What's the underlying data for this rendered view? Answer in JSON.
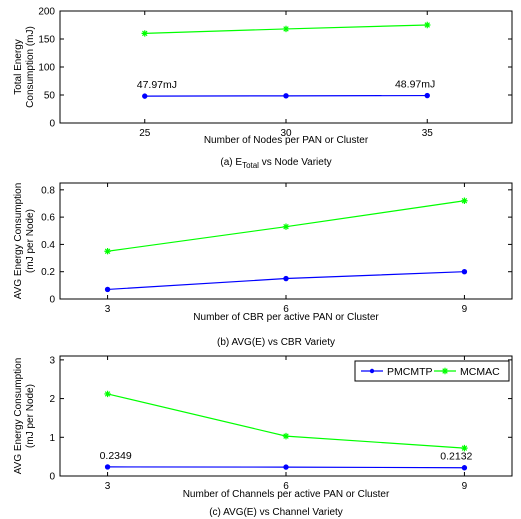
{
  "colors": {
    "PMCMTP": "#0000ff",
    "MCMAC": "#00ff00",
    "axes": "#000000"
  },
  "chart_data": [
    {
      "type": "line",
      "caption": "(a) E",
      "caption_sub": "Total",
      "caption_rest": " vs Node Variety",
      "xlabel": "Number of Nodes per  PAN or Cluster",
      "ylabel": [
        "Total Energy",
        "Consumption (mJ)"
      ],
      "x": [
        25,
        30,
        35
      ],
      "xlim": [
        22,
        38
      ],
      "ylim": [
        0,
        200
      ],
      "xticks": [
        "25",
        "30",
        "35"
      ],
      "yticks": [
        "0",
        "50",
        "100",
        "150",
        "200"
      ],
      "series": [
        {
          "key": "PMCMTP",
          "marker": "circle",
          "values": [
            47.97,
            48.5,
            48.97
          ]
        },
        {
          "key": "MCMAC",
          "marker": "star",
          "values": [
            160,
            168,
            175
          ]
        }
      ],
      "annotations": [
        {
          "text": "47.97mJ",
          "x": 25,
          "y": 47.97,
          "anchor": "start"
        },
        {
          "text": "48.97mJ",
          "x": 35,
          "y": 48.97,
          "anchor": "end"
        }
      ]
    },
    {
      "type": "line",
      "caption": "(b) AVG(E) vs CBR Variety",
      "xlabel": "Number of CBR per active PAN or Cluster",
      "ylabel": [
        "AVG Energy Consumption",
        "(mJ per Node)"
      ],
      "x": [
        3,
        6,
        9
      ],
      "xlim": [
        2.2,
        9.8
      ],
      "ylim": [
        0,
        0.85
      ],
      "xticks": [
        "3",
        "6",
        "9"
      ],
      "yticks": [
        "0",
        "0.2",
        "0.4",
        "0.6",
        "0.8"
      ],
      "series": [
        {
          "key": "PMCMTP",
          "marker": "circle",
          "values": [
            0.07,
            0.15,
            0.2
          ]
        },
        {
          "key": "MCMAC",
          "marker": "star",
          "values": [
            0.35,
            0.53,
            0.72
          ]
        }
      ]
    },
    {
      "type": "line",
      "caption": "(c) AVG(E) vs Channel Variety",
      "xlabel": "Number of Channels per active PAN or Cluster",
      "ylabel": [
        "AVG Energy Consumption",
        "(mJ per Node)"
      ],
      "x": [
        3,
        6,
        9
      ],
      "xlim": [
        2.2,
        9.8
      ],
      "ylim": [
        0,
        3.1
      ],
      "xticks": [
        "3",
        "6",
        "9"
      ],
      "yticks": [
        "0",
        "1",
        "2",
        "3"
      ],
      "series": [
        {
          "key": "PMCMTP",
          "marker": "circle",
          "values": [
            0.2349,
            0.23,
            0.2132
          ]
        },
        {
          "key": "MCMAC",
          "marker": "star",
          "values": [
            2.12,
            1.03,
            0.72
          ]
        }
      ],
      "annotations": [
        {
          "text": "0.2349",
          "x": 3,
          "y": 0.2349,
          "anchor": "start"
        },
        {
          "text": "0.2132",
          "x": 9,
          "y": 0.2132,
          "anchor": "end"
        }
      ],
      "legend": {
        "placement": "top-right",
        "entries": [
          {
            "key": "PMCMTP",
            "label": "PMCMTP"
          },
          {
            "key": "MCMAC",
            "label": "MCMAC"
          }
        ]
      }
    }
  ]
}
